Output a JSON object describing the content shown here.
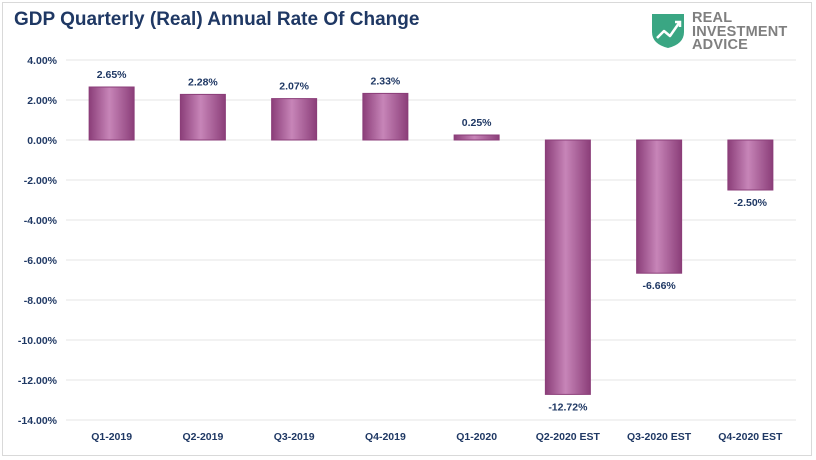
{
  "title": "GDP Quarterly (Real) Annual Rate Of Change",
  "logo": {
    "line1": "REAL",
    "line2": "INVESTMENT",
    "line3": "ADVICE"
  },
  "colors": {
    "bar": "#a3508f",
    "bar_light": "#c785b8",
    "bar_dark": "#8b3e79",
    "text": "#1f3864",
    "grid": "#e6e6e6",
    "logo_green": "#3aa683"
  },
  "chart_data": {
    "type": "bar",
    "title": "GDP Quarterly (Real) Annual Rate Of Change",
    "categories": [
      "Q1-2019",
      "Q2-2019",
      "Q3-2019",
      "Q4-2019",
      "Q1-2020",
      "Q2-2020 EST",
      "Q3-2020 EST",
      "Q4-2020 EST"
    ],
    "values": [
      2.65,
      2.28,
      2.07,
      2.33,
      0.25,
      -12.72,
      -6.66,
      -2.5
    ],
    "value_labels": [
      "2.65%",
      "2.28%",
      "2.07%",
      "2.33%",
      "0.25%",
      "-12.72%",
      "-6.66%",
      "-2.50%"
    ],
    "ylim": [
      -14,
      4
    ],
    "y_ticks": [
      "4.00%",
      "2.00%",
      "0.00%",
      "-2.00%",
      "-4.00%",
      "-6.00%",
      "-8.00%",
      "-10.00%",
      "-12.00%",
      "-14.00%"
    ],
    "y_tick_values": [
      4,
      2,
      0,
      -2,
      -4,
      -6,
      -8,
      -10,
      -12,
      -14
    ],
    "grid": true,
    "legend": "none"
  }
}
